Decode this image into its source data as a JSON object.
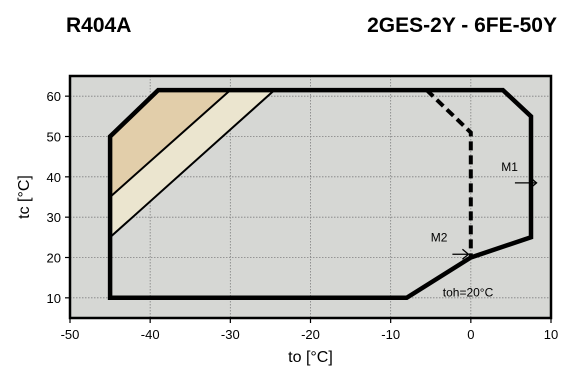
{
  "header": {
    "refrigerant": "R404A",
    "model": "2GES-2Y - 6FE-50Y"
  },
  "chart_data": {
    "type": "area",
    "title": "",
    "xlabel": "to [°C]",
    "ylabel": "tc [°C]",
    "xlim": [
      -50,
      10
    ],
    "ylim": [
      5,
      65
    ],
    "x_ticks": [
      -50,
      -40,
      -30,
      -20,
      -10,
      0,
      10
    ],
    "y_ticks": [
      10,
      20,
      30,
      40,
      50,
      60
    ],
    "x_tick_labels": [
      "-50",
      "-40",
      "-30",
      "-20",
      "-10",
      "0",
      "10"
    ],
    "y_tick_labels": [
      "10",
      "20",
      "30",
      "40",
      "50",
      "60"
    ],
    "grid": true,
    "plot_background": "#d6d7d4",
    "envelope": {
      "color": "#000000",
      "points": [
        [
          -45,
          10
        ],
        [
          -45,
          50
        ],
        [
          -39,
          61.5
        ],
        [
          4,
          61.5
        ],
        [
          7.5,
          55
        ],
        [
          7.5,
          25
        ],
        [
          0,
          20
        ],
        [
          -8,
          10
        ]
      ]
    },
    "zones": [
      {
        "color": "#e2ceaa",
        "points": [
          [
            -45,
            50
          ],
          [
            -39,
            61.5
          ],
          [
            -30,
            61.5
          ],
          [
            -45,
            35
          ]
        ]
      },
      {
        "color": "#ebe5cf",
        "points": [
          [
            -45,
            35
          ],
          [
            -30,
            61.5
          ],
          [
            -24.5,
            61.5
          ],
          [
            -45,
            25
          ]
        ]
      }
    ],
    "zone_lines": [
      [
        [
          -45,
          35
        ],
        [
          -30,
          61.5
        ]
      ],
      [
        [
          -45,
          25
        ],
        [
          -24.5,
          61.5
        ]
      ]
    ],
    "dashed_limit": [
      [
        -5.5,
        61.5
      ],
      [
        0,
        51
      ],
      [
        0,
        20
      ]
    ],
    "annotations": [
      {
        "label": "M1",
        "x": 3.8,
        "y": 41.5,
        "arrow": [
          [
            5.5,
            38.5
          ],
          [
            8.2,
            38.5
          ]
        ]
      },
      {
        "label": "M2",
        "x": -5,
        "y": 24,
        "arrow": [
          [
            -2.3,
            20.8
          ],
          [
            -0.3,
            20.8
          ]
        ]
      },
      {
        "label": "toh=20°C",
        "x": -3.5,
        "y": 10.3
      }
    ]
  }
}
